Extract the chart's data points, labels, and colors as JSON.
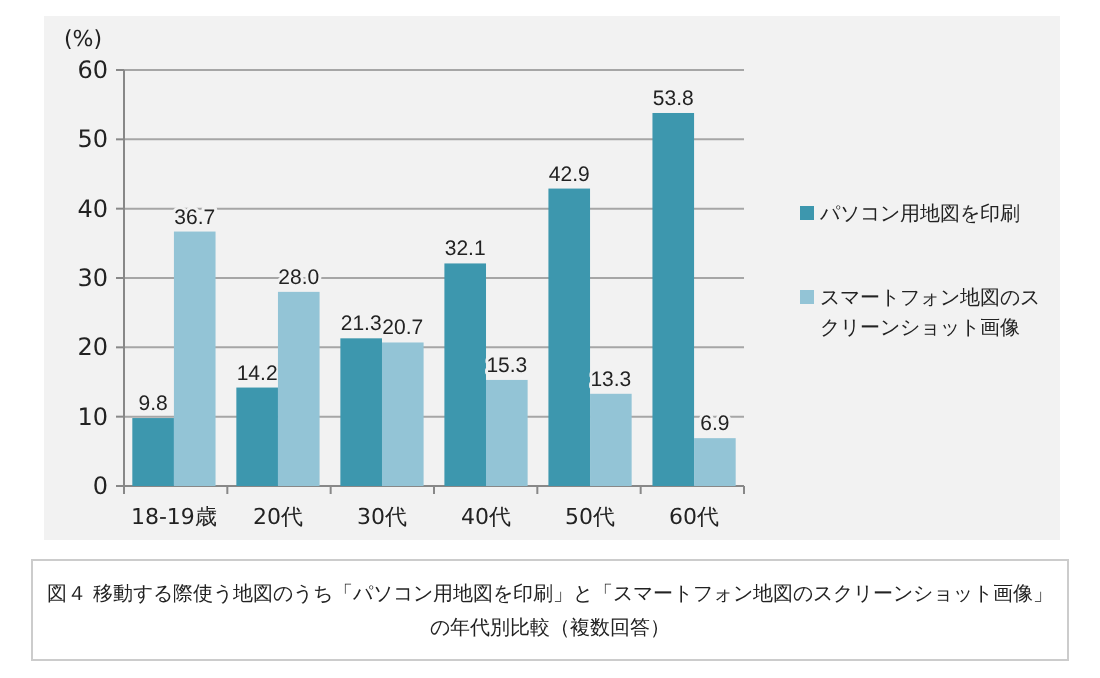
{
  "chart_data": {
    "type": "bar",
    "ylabel": "(%)",
    "categories": [
      "18-19歳",
      "20代",
      "30代",
      "40代",
      "50代",
      "60代"
    ],
    "series": [
      {
        "name": "パソコン用地図を印刷",
        "color": "#3d97ae",
        "values": [
          9.8,
          14.2,
          21.3,
          32.1,
          42.9,
          53.8
        ],
        "value_labels": [
          "9.8",
          "14.2",
          "21.3",
          "32.1",
          "42.9",
          "53.8"
        ]
      },
      {
        "name": "スマートフォン地図のスクリーンショット画像",
        "color": "#93c4d6",
        "values": [
          36.7,
          28.0,
          20.7,
          15.3,
          13.3,
          6.9
        ],
        "value_labels": [
          "36.7",
          "28.0",
          "20.7",
          "15.3",
          "13.3",
          "6.9"
        ]
      }
    ],
    "ylim": [
      0,
      60
    ],
    "yticks": [
      0,
      10,
      20,
      30,
      40,
      50,
      60
    ],
    "grid": "y",
    "legend": "right",
    "annotations": [
      "図４ 移動する際使う地図のうち「パソコン用地図を印刷」と「スマートフォン地図のスクリーンショット画像」の年代別比較（複数回答）"
    ]
  }
}
